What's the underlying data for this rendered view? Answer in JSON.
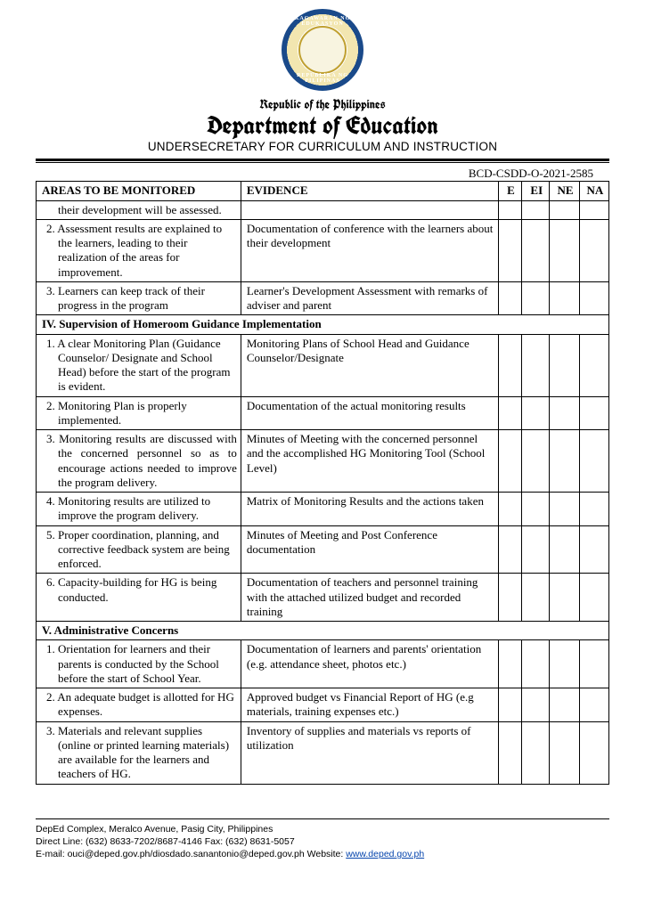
{
  "header": {
    "seal_top": "KAGAWARAN NG EDUKASYON",
    "seal_bot": "REPUBLIKA NG PILIPINAS",
    "republic": "Republic of the Philippines",
    "dept": "Department of Education",
    "undersec": "UNDERSECRETARY FOR CURRICULUM AND INSTRUCTION"
  },
  "doc_number": "BCD-CSDD-O-2021-2585",
  "columns": {
    "area": "AREAS TO BE MONITORED",
    "evidence": "EVIDENCE",
    "e": "E",
    "ei": "EI",
    "ne": "NE",
    "na": "NA"
  },
  "rows": [
    {
      "area": "their development will be assessed.",
      "evidence": "",
      "indent": true,
      "continuation": true
    },
    {
      "area": "2. Assessment results are explained to the learners, leading to their realization of the areas for improvement.",
      "evidence": "Documentation of conference with the learners about their development",
      "indent": true
    },
    {
      "area": "3. Learners can keep track of their progress in the program",
      "evidence": "Learner's Development Assessment with remarks of adviser and parent",
      "indent": true
    },
    {
      "section": "IV.  Supervision of Homeroom Guidance Implementation"
    },
    {
      "area": "1. A clear Monitoring Plan (Guidance Counselor/ Designate and School Head) before the start of the program is evident.",
      "evidence": "Monitoring Plans of School Head and Guidance Counselor/Designate",
      "indent": true
    },
    {
      "area": "2. Monitoring Plan is properly implemented.",
      "evidence": "Documentation of the actual monitoring results",
      "indent": true
    },
    {
      "area": "3. Monitoring results are discussed with the concerned personnel so as to encourage actions needed to improve the program delivery.",
      "evidence": "Minutes of Meeting with the concerned personnel and the accomplished HG Monitoring Tool (School Level)",
      "indent": true,
      "justify": true
    },
    {
      "area": "4. Monitoring results are utilized to improve the program delivery.",
      "evidence": "Matrix of Monitoring Results and the actions taken",
      "indent": true
    },
    {
      "area": "5. Proper coordination, planning, and corrective feedback system are being enforced.",
      "evidence": "Minutes of Meeting and Post Conference documentation",
      "indent": true
    },
    {
      "area": "6. Capacity-building for HG is being conducted.",
      "evidence": "Documentation of teachers and personnel training with the attached utilized budget and recorded training",
      "indent": true
    },
    {
      "section": "V.  Administrative Concerns"
    },
    {
      "area": "1. Orientation for learners and their parents is conducted by the School before the start of School Year.",
      "evidence": "Documentation of learners and parents' orientation (e.g. attendance sheet, photos etc.)",
      "indent": true
    },
    {
      "area": "2. An adequate budget is allotted for HG expenses.",
      "evidence": "Approved budget vs Financial Report of HG (e.g materials, training expenses etc.)",
      "indent": true
    },
    {
      "area": "3. Materials and relevant supplies (online or printed learning materials) are available for the learners and teachers of HG.",
      "evidence": "Inventory of supplies and materials vs reports of utilization",
      "indent": true
    }
  ],
  "footer": {
    "line1": "DepEd Complex, Meralco Avenue, Pasig City, Philippines",
    "line2": "Direct Line: (632) 8633-7202/8687-4146 Fax: (632) 8631-5057",
    "line3_pre": "E-mail: ouci@deped.gov.ph/diosdado.sanantonio@deped.gov.ph Website: ",
    "line3_link": "www.deped.gov.ph"
  }
}
